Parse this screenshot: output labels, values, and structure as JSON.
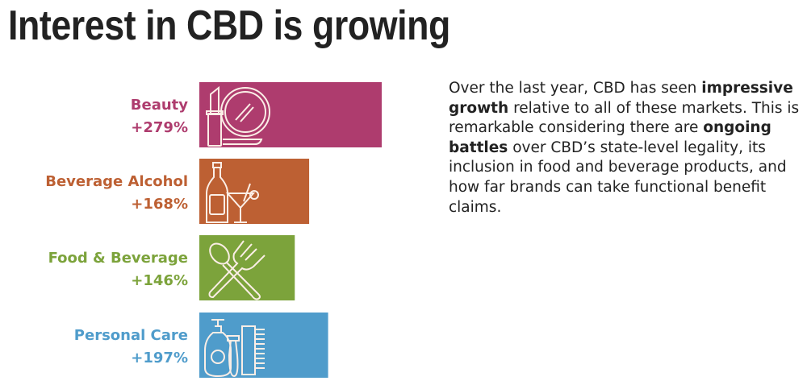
{
  "title": "Interest in CBD is growing",
  "body": {
    "p1": "Over the last year, CBD has seen ",
    "b1": "impressive growth",
    "p2": " relative to all of these markets. This is remarkable considering there are ",
    "b2": "ongoing battles",
    "p3": " over CBD’s state-level legality, its inclusion in food and beverage products, and how far brands can take functional benefit claims."
  },
  "chart_data": {
    "type": "bar",
    "orientation": "horizontal",
    "categories": [
      "Beauty",
      "Beverage Alcohol",
      "Food & Beverage",
      "Personal Care"
    ],
    "values": [
      279,
      168,
      146,
      197
    ],
    "value_labels": [
      "+279%",
      "+168%",
      "+146%",
      "+197%"
    ],
    "colors": [
      "#ae3c6e",
      "#bd6033",
      "#7ca33b",
      "#4f9ccb"
    ],
    "icons": [
      "lipstick-mirror-icon",
      "bottle-cocktail-icon",
      "spoon-fork-icon",
      "soap-razor-comb-icon"
    ],
    "grid": false,
    "axes": false
  }
}
